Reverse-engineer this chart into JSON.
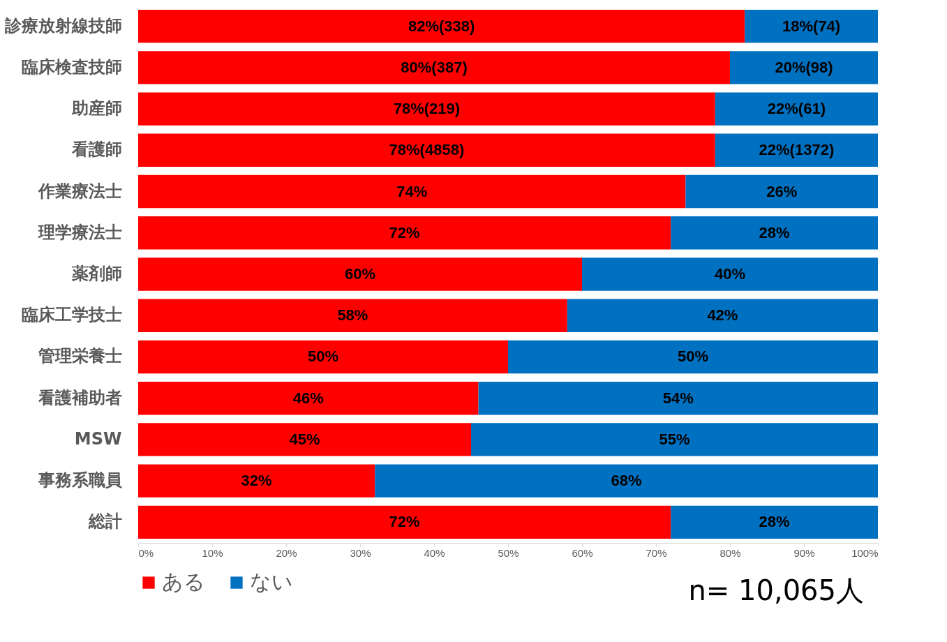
{
  "chart_data": {
    "type": "bar",
    "orientation": "horizontal",
    "stacked": true,
    "categories": [
      "診療放射線技師",
      "臨床検査技師",
      "助産師",
      "看護師",
      "作業療法士",
      "理学療法士",
      "薬剤師",
      "臨床工学技士",
      "管理栄養士",
      "看護補助者",
      "MSW",
      "事務系職員",
      "総計"
    ],
    "series": [
      {
        "name": "ある",
        "color": "#ff0000",
        "values": [
          82,
          80,
          78,
          78,
          74,
          72,
          60,
          58,
          50,
          46,
          45,
          32,
          72
        ],
        "value_labels": [
          "82%(338)",
          "80%(387)",
          "78%(219)",
          "78%(4858)",
          "74%",
          "72%",
          "60%",
          "58%",
          "50%",
          "46%",
          "45%",
          "32%",
          "72%"
        ]
      },
      {
        "name": "ない",
        "color": "#0070c0",
        "values": [
          18,
          20,
          22,
          22,
          26,
          28,
          40,
          42,
          50,
          54,
          55,
          68,
          28
        ],
        "value_labels": [
          "18%(74)",
          "20%(98)",
          "22%(61)",
          "22%(1372)",
          "26%",
          "28%",
          "40%",
          "42%",
          "50%",
          "54%",
          "55%",
          "68%",
          "28%"
        ]
      }
    ],
    "xlim": [
      0,
      100
    ],
    "xticks": [
      {
        "value": 0,
        "label": "0%"
      },
      {
        "value": 10,
        "label": "10%"
      },
      {
        "value": 20,
        "label": "20%"
      },
      {
        "value": 30,
        "label": "30%"
      },
      {
        "value": 40,
        "label": "40%"
      },
      {
        "value": 50,
        "label": "50%"
      },
      {
        "value": 60,
        "label": "60%"
      },
      {
        "value": 70,
        "label": "70%"
      },
      {
        "value": 80,
        "label": "80%"
      },
      {
        "value": 90,
        "label": "90%"
      },
      {
        "value": 100,
        "label": "100%"
      }
    ],
    "grid": false,
    "legend": "bottom",
    "annotations": [
      "n= 10,065人"
    ]
  }
}
